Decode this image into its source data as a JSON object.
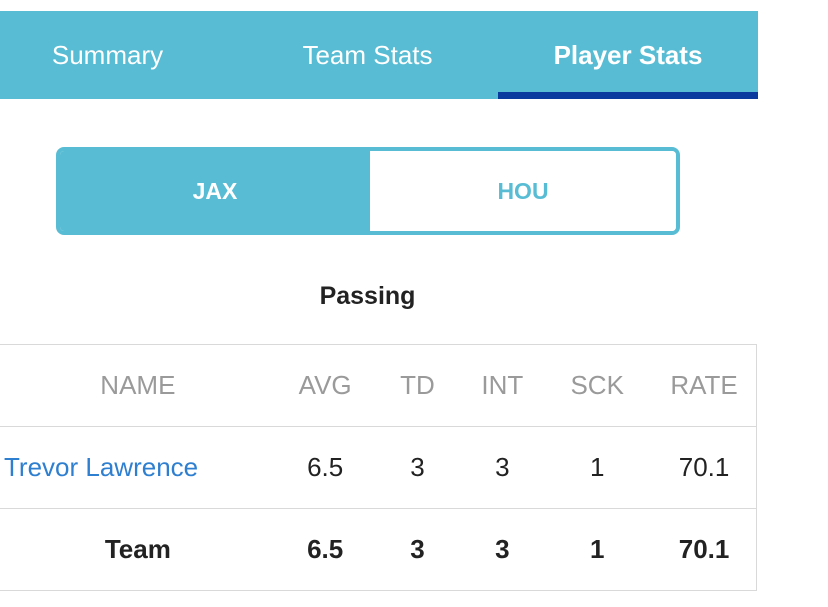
{
  "tabs": [
    {
      "label": "Summary"
    },
    {
      "label": "Team Stats"
    },
    {
      "label": "Player Stats"
    }
  ],
  "active_tab": "Player Stats",
  "team_toggle": {
    "left": "JAX",
    "right": "HOU",
    "selected": "JAX"
  },
  "section_title": "Passing",
  "table": {
    "headers": [
      "NAME",
      "AVG",
      "TD",
      "INT",
      "SCK",
      "RATE"
    ],
    "rows": [
      [
        "Trevor Lawrence",
        "6.5",
        "3",
        "3",
        "1",
        "70.1"
      ]
    ],
    "total": [
      "Team",
      "6.5",
      "3",
      "3",
      "1",
      "70.1"
    ]
  },
  "colors": {
    "accent": "#58bdd4",
    "active_underline": "#0a3a9e",
    "link": "#2f7fd0"
  }
}
